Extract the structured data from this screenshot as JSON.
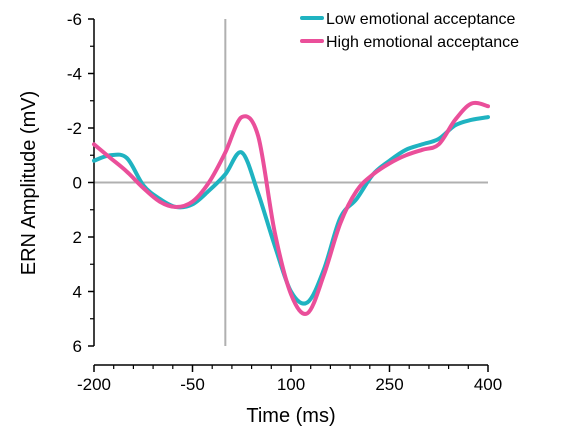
{
  "chart_data": {
    "type": "line",
    "xlabel": "Time (ms)",
    "ylabel": "ERN Amplitude (mV)",
    "xlim": [
      -200,
      400
    ],
    "ylim": [
      -6,
      6
    ],
    "y_inverted": true,
    "grid": false,
    "legend_position": "top-right",
    "x_ticks": [
      -200,
      -50,
      100,
      250,
      400
    ],
    "x_tick_labels": [
      "-200",
      "-50",
      "100",
      "250",
      "400"
    ],
    "y_ticks": [
      -6,
      -4,
      -2,
      0,
      2,
      4,
      6
    ],
    "y_tick_labels": [
      "-6",
      "-4",
      "-2",
      "0",
      "2",
      "4",
      "6"
    ],
    "reference_lines": {
      "horizontal_at_y": 0,
      "vertical_at_x": 0
    },
    "series": [
      {
        "name": "Low emotional acceptance",
        "color": "#1fb3c1",
        "x": [
          -200,
          -175,
          -150,
          -125,
          -100,
          -75,
          -50,
          -25,
          0,
          25,
          50,
          75,
          100,
          125,
          150,
          175,
          200,
          225,
          250,
          275,
          300,
          325,
          350,
          375,
          400
        ],
        "y": [
          -0.8,
          -1.0,
          -0.9,
          0.1,
          0.6,
          0.9,
          0.8,
          0.3,
          -0.3,
          -1.1,
          0.4,
          2.3,
          4.0,
          4.4,
          3.2,
          1.3,
          0.6,
          -0.3,
          -0.8,
          -1.2,
          -1.4,
          -1.6,
          -2.1,
          -2.3,
          -2.4
        ]
      },
      {
        "name": "High emotional acceptance",
        "color": "#ea4f9a",
        "x": [
          -200,
          -175,
          -150,
          -125,
          -100,
          -75,
          -50,
          -25,
          0,
          25,
          50,
          75,
          100,
          125,
          150,
          175,
          200,
          225,
          250,
          275,
          300,
          325,
          350,
          375,
          400
        ],
        "y": [
          -1.4,
          -0.9,
          -0.4,
          0.2,
          0.7,
          0.9,
          0.7,
          0.0,
          -1.1,
          -2.4,
          -1.7,
          1.8,
          4.1,
          4.8,
          3.4,
          1.5,
          0.3,
          -0.3,
          -0.7,
          -1.0,
          -1.2,
          -1.4,
          -2.3,
          -2.9,
          -2.8
        ]
      }
    ]
  }
}
